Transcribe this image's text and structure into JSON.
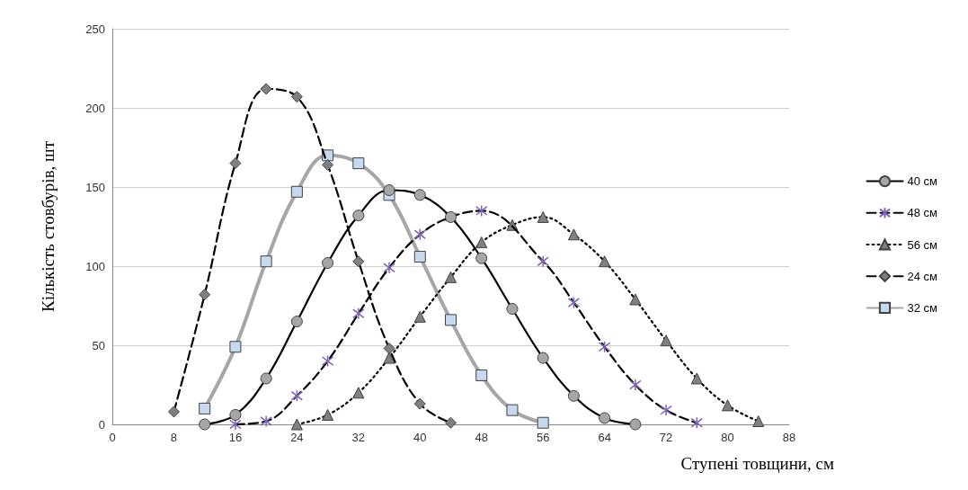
{
  "chart_data": {
    "type": "line",
    "xlabel": "Ступені товщини, см",
    "ylabel": "Кількість стовбурів, шт",
    "xlim": [
      0,
      88
    ],
    "xticks": [
      0,
      8,
      16,
      24,
      32,
      40,
      48,
      56,
      64,
      72,
      80,
      88
    ],
    "ylim": [
      0,
      250
    ],
    "yticks": [
      0,
      50,
      100,
      150,
      200,
      250
    ],
    "grid": "y",
    "legend": "right",
    "series": [
      {
        "name": "40 см",
        "color": "#a6a6a6",
        "marker": "circle",
        "line_style": "solid",
        "x": [
          12,
          16,
          20,
          24,
          28,
          32,
          36,
          40,
          44,
          48,
          52,
          56,
          60,
          64,
          68
        ],
        "values": [
          0,
          6,
          29,
          65,
          102,
          132,
          148,
          145,
          131,
          105,
          73,
          42,
          18,
          4,
          0
        ]
      },
      {
        "name": "48 см",
        "color": "#7f63b8",
        "marker": "cross",
        "line_style": "dashed",
        "x": [
          16,
          20,
          24,
          28,
          32,
          36,
          40,
          44,
          48,
          52,
          56,
          60,
          64,
          68,
          72,
          76
        ],
        "values": [
          0,
          2,
          18,
          40,
          70,
          99,
          120,
          131,
          135,
          null,
          103,
          77,
          49,
          25,
          9,
          1
        ]
      },
      {
        "name": "56 см",
        "color": "#808080",
        "marker": "triangle",
        "line_style": "dotted",
        "x": [
          24,
          28,
          32,
          36,
          40,
          44,
          48,
          52,
          56,
          60,
          64,
          68,
          72,
          76,
          80,
          84
        ],
        "values": [
          0,
          6,
          20,
          42,
          68,
          93,
          115,
          126,
          131,
          120,
          103,
          79,
          53,
          29,
          12,
          2
        ]
      },
      {
        "name": "24 см",
        "color": "#808080",
        "marker": "diamond",
        "line_style": "dashed",
        "x": [
          8,
          12,
          16,
          20,
          24,
          28,
          32,
          36,
          40,
          44
        ],
        "values": [
          8,
          82,
          165,
          212,
          207,
          164,
          103,
          48,
          13,
          1
        ]
      },
      {
        "name": "32 см",
        "color": "#c6d9f1",
        "marker": "square",
        "line_style": "solid",
        "x": [
          12,
          16,
          20,
          24,
          28,
          32,
          36,
          40,
          44,
          48,
          52,
          56
        ],
        "values": [
          10,
          49,
          103,
          147,
          170,
          165,
          145,
          106,
          66,
          31,
          9,
          1
        ]
      }
    ]
  }
}
